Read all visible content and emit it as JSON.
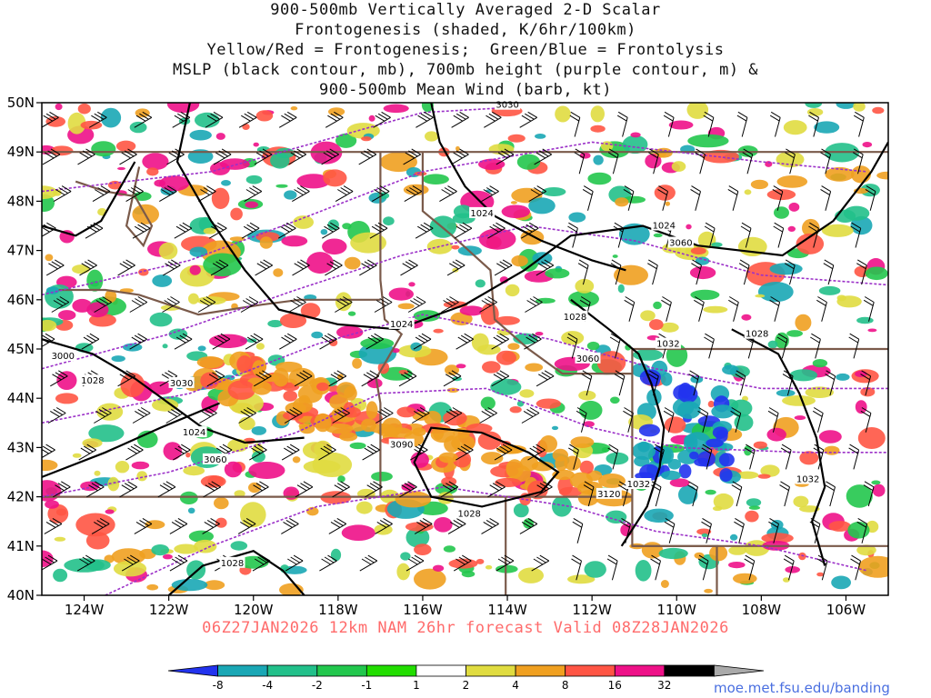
{
  "title_lines": [
    "900-500mb Vertically Averaged 2-D Scalar",
    "Frontogenesis (shaded, K/6hr/100km)",
    "Yellow/Red = Frontogenesis;  Green/Blue = Frontolysis",
    "MSLP (black contour, mb), 700mb height (purple contour, m) &",
    "900-500mb Mean Wind (barb, kt)"
  ],
  "subtitle": "06Z27JAN2026 12km NAM 26hr forecast Valid 08Z28JAN2026",
  "credit": "moe.met.fsu.edu/banding",
  "map": {
    "lon_range": [
      -125,
      -105
    ],
    "lat_range": [
      40,
      50
    ],
    "lat_ticks": [
      "50N",
      "49N",
      "48N",
      "47N",
      "46N",
      "45N",
      "44N",
      "43N",
      "42N",
      "41N",
      "40N"
    ],
    "lon_ticks": [
      "124W",
      "122W",
      "120W",
      "118W",
      "116W",
      "114W",
      "112W",
      "110W",
      "108W",
      "106W"
    ],
    "colors": {
      "mslp_contour": "#000000",
      "height_contour": "#9b30c8",
      "borders": "#7a5a4a",
      "barbs": "#000000"
    },
    "mslp_labels": [
      {
        "text": "1024",
        "lon": -114.6,
        "lat": 47.75
      },
      {
        "text": "1024",
        "lon": -110.3,
        "lat": 47.5
      },
      {
        "text": "1024",
        "lon": -116.5,
        "lat": 45.5
      },
      {
        "text": "1028",
        "lon": -112.4,
        "lat": 45.65
      },
      {
        "text": "1032",
        "lon": -110.2,
        "lat": 45.1
      },
      {
        "text": "1028",
        "lon": -108.1,
        "lat": 45.3
      },
      {
        "text": "1028",
        "lon": -123.8,
        "lat": 44.35
      },
      {
        "text": "1024",
        "lon": -121.4,
        "lat": 43.3
      },
      {
        "text": "1028",
        "lon": -114.9,
        "lat": 41.65
      },
      {
        "text": "1032",
        "lon": -110.9,
        "lat": 42.25
      },
      {
        "text": "1032",
        "lon": -106.9,
        "lat": 42.35
      },
      {
        "text": "1028",
        "lon": -120.5,
        "lat": 40.65
      }
    ],
    "height_labels": [
      {
        "text": "3030",
        "lon": -114.0,
        "lat": 49.95
      },
      {
        "text": "3060",
        "lon": -109.9,
        "lat": 47.15
      },
      {
        "text": "3000",
        "lon": -124.5,
        "lat": 44.85
      },
      {
        "text": "3030",
        "lon": -121.7,
        "lat": 44.3
      },
      {
        "text": "3060",
        "lon": -112.1,
        "lat": 44.8
      },
      {
        "text": "3060",
        "lon": -120.9,
        "lat": 42.75
      },
      {
        "text": "3090",
        "lon": -116.5,
        "lat": 43.05
      },
      {
        "text": "3120",
        "lon": -111.6,
        "lat": 42.05
      }
    ]
  },
  "colorbar": {
    "labels": [
      "-8",
      "-4",
      "-2",
      "-1",
      "1",
      "2",
      "4",
      "8",
      "16",
      "32"
    ],
    "colors": [
      "#2233ee",
      "#1aa7b5",
      "#22c08a",
      "#22c74d",
      "#22dd00",
      "#ffffff",
      "#e0dc40",
      "#f0a020",
      "#ff5544",
      "#ee1188",
      "#000000",
      "#aaaaaa"
    ]
  }
}
